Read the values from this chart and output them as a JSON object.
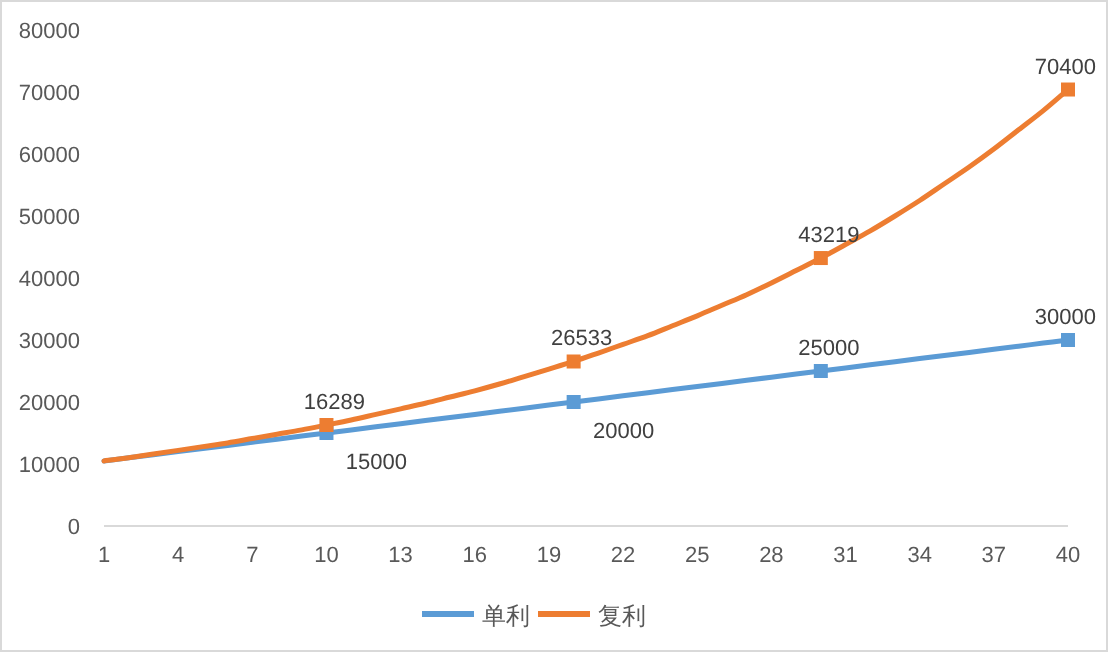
{
  "chart_data": {
    "type": "line",
    "x": [
      1,
      2,
      3,
      4,
      5,
      6,
      7,
      8,
      9,
      10,
      11,
      12,
      13,
      14,
      15,
      16,
      17,
      18,
      19,
      20,
      21,
      22,
      23,
      24,
      25,
      26,
      27,
      28,
      29,
      30,
      31,
      32,
      33,
      34,
      35,
      36,
      37,
      38,
      39,
      40
    ],
    "xlim": [
      1,
      40
    ],
    "xticks": [
      1,
      4,
      7,
      10,
      13,
      16,
      19,
      22,
      25,
      28,
      31,
      34,
      37,
      40
    ],
    "series": [
      {
        "name": "单利",
        "color": "#5b9bd5",
        "values": [
          10500,
          11000,
          11500,
          12000,
          12500,
          13000,
          13500,
          14000,
          14500,
          15000,
          15500,
          16000,
          16500,
          17000,
          17500,
          18000,
          18500,
          19000,
          19500,
          20000,
          20500,
          21000,
          21500,
          22000,
          22500,
          23000,
          23500,
          24000,
          24500,
          25000,
          25500,
          26000,
          26500,
          27000,
          27500,
          28000,
          28500,
          29000,
          29500,
          30000
        ],
        "value_labels": [
          null,
          null,
          null,
          null,
          null,
          null,
          null,
          null,
          null,
          "15000",
          null,
          null,
          null,
          null,
          null,
          null,
          null,
          null,
          null,
          "20000",
          null,
          null,
          null,
          null,
          null,
          null,
          null,
          null,
          null,
          "25000",
          null,
          null,
          null,
          null,
          null,
          null,
          null,
          null,
          null,
          "30000"
        ]
      },
      {
        "name": "复利",
        "color": "#ed7d31",
        "values": [
          10500,
          11000,
          11600,
          12200,
          12800,
          13400,
          14100,
          14800,
          15500,
          16289,
          17100,
          18000,
          18900,
          19800,
          20800,
          21800,
          22900,
          24100,
          25300,
          26533,
          27900,
          29300,
          30700,
          32300,
          33900,
          35600,
          37300,
          39200,
          41200,
          43219,
          45400,
          47600,
          50000,
          52500,
          55200,
          57900,
          60800,
          63900,
          67000,
          70400
        ],
        "value_labels": [
          null,
          null,
          null,
          null,
          null,
          null,
          null,
          null,
          null,
          "16289",
          null,
          null,
          null,
          null,
          null,
          null,
          null,
          null,
          null,
          "26533",
          null,
          null,
          null,
          null,
          null,
          null,
          null,
          null,
          null,
          "43219",
          null,
          null,
          null,
          null,
          null,
          null,
          null,
          null,
          null,
          "70400"
        ]
      },
      {
        "type": "scatter",
        "color": "#5b9bd5",
        "marker": "square",
        "x": [
          10,
          20,
          30,
          40
        ],
        "values": [
          15000,
          20000,
          25000,
          30000
        ]
      },
      {
        "type": "scatter",
        "color": "#ed7d31",
        "marker": "square",
        "x": [
          10,
          20,
          30,
          40
        ],
        "values": [
          16289,
          26533,
          43219,
          70400
        ]
      }
    ],
    "ylim": [
      0,
      80000
    ],
    "yticks": [
      0,
      10000,
      20000,
      30000,
      40000,
      50000,
      60000,
      70000,
      80000
    ],
    "grid": false,
    "legend": "bottom",
    "line_style": "solid"
  }
}
